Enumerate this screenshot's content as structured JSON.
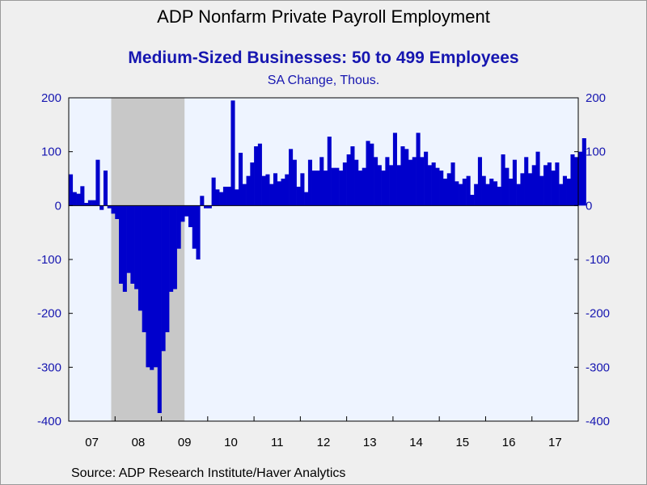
{
  "chart_data": {
    "type": "bar",
    "title": "ADP Nonfarm Private Payroll Employment",
    "subtitle": "Medium-Sized Businesses: 50 to 499 Employees",
    "units": "SA Change, Thous.",
    "source": "Source:  ADP Research Institute/Haver Analytics",
    "y_ticks": [
      "200",
      "100",
      "0",
      "-100",
      "-200",
      "-300",
      "-400"
    ],
    "x_ticks": [
      "07",
      "08",
      "09",
      "10",
      "11",
      "12",
      "13",
      "14",
      "15",
      "16",
      "17"
    ],
    "ylim": [
      -400,
      200
    ],
    "x_range": [
      "2007-01",
      "2017-12"
    ],
    "recession_shading": [
      "2007-12",
      "2009-06"
    ],
    "colors": {
      "bars": "#0000cc",
      "plot_background": "#eef4ff",
      "recession": "#c8c8c8",
      "text_accent": "#1616b0"
    },
    "series": [
      {
        "start": "2007-01",
        "frequency": "monthly",
        "values": [
          58,
          25,
          22,
          36,
          5,
          10,
          10,
          85,
          -8,
          65,
          -5,
          -15,
          -25,
          -145,
          -160,
          -125,
          -145,
          -155,
          -195,
          -235,
          -300,
          -305,
          -300,
          -385,
          -270,
          -235,
          -160,
          -155,
          -80,
          -30,
          -20,
          -40,
          -80,
          -100,
          18,
          -5,
          -5,
          52,
          30,
          25,
          35,
          35,
          195,
          30,
          98,
          40,
          55,
          80,
          110,
          115,
          55,
          58,
          40,
          60,
          45,
          50,
          58,
          105,
          85,
          35,
          60,
          25,
          85,
          65,
          65,
          90,
          65,
          128,
          70,
          70,
          65,
          80,
          95,
          110,
          85,
          65,
          70,
          120,
          115,
          90,
          75,
          65,
          90,
          75,
          135,
          75,
          110,
          105,
          85,
          90,
          135,
          90,
          100,
          75,
          80,
          70,
          65,
          50,
          60,
          80,
          45,
          40,
          50,
          55,
          20,
          40,
          90,
          55,
          40,
          50,
          45,
          35,
          95,
          70,
          50,
          85,
          40,
          60,
          90,
          60,
          75,
          100,
          55,
          75,
          80,
          65,
          80,
          40,
          55,
          50,
          95,
          90,
          100,
          125
        ]
      }
    ]
  }
}
